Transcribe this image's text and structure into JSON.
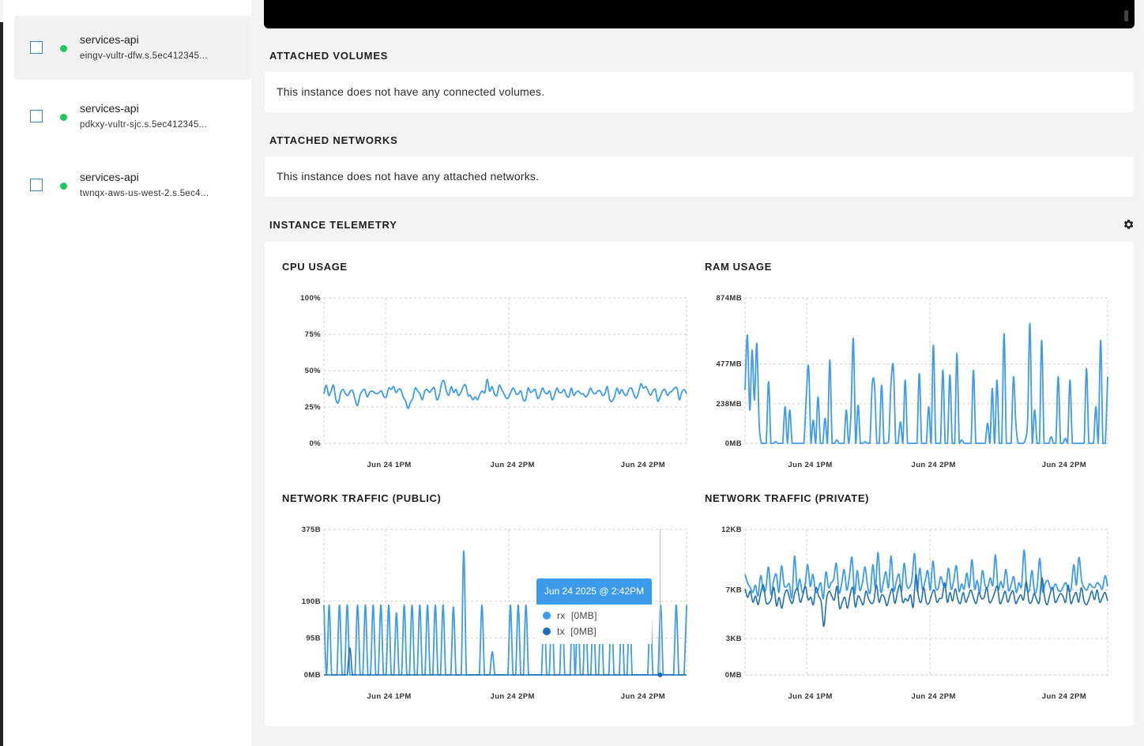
{
  "sidebar": {
    "instances": [
      {
        "name": "services-api",
        "host": "eingv-vultr-dfw.s.5ec412345...",
        "status": "running"
      },
      {
        "name": "services-api",
        "host": "pdkxy-vultr-sjc.s.5ec412345...",
        "status": "running"
      },
      {
        "name": "services-api",
        "host": "twnqx-aws-us-west-2.s.5ec4...",
        "status": "running"
      }
    ]
  },
  "volumes": {
    "title": "ATTACHED VOLUMES",
    "message": "This instance does not have any connected volumes."
  },
  "networks": {
    "title": "ATTACHED NETWORKS",
    "message": "This instance does not have any attached networks."
  },
  "telemetry": {
    "title": "INSTANCE TELEMETRY",
    "settings_icon": "gear-icon"
  },
  "colors": {
    "accent": "#3d9be9",
    "series_rx": "#3d9be9",
    "series_tx": "#1f6fb2",
    "status_ok": "#22c55e"
  },
  "chart_data": [
    {
      "id": "cpu",
      "type": "line",
      "title": "CPU USAGE",
      "y_ticks": [
        "100%",
        "75%",
        "50%",
        "25%",
        "0%"
      ],
      "x_ticks": [
        "Jun 24 1PM",
        "Jun 24 2PM",
        "Jun 24 2PM"
      ],
      "ylim": [
        0,
        100
      ],
      "grid": true,
      "series": [
        {
          "values": [
            34,
            40,
            33,
            36,
            40,
            30,
            28,
            35,
            37,
            34,
            33,
            36,
            36,
            30,
            26,
            33,
            36,
            37,
            32,
            35,
            36,
            35,
            34,
            35,
            36,
            32,
            32,
            38,
            37,
            39,
            35,
            37,
            37,
            32,
            29,
            24,
            28,
            31,
            38,
            36,
            34,
            30,
            36,
            37,
            35,
            37,
            38,
            30,
            33,
            41,
            43,
            36,
            33,
            39,
            35,
            37,
            33,
            35,
            39,
            40,
            33,
            33,
            30,
            32,
            30,
            34,
            36,
            35,
            44,
            36,
            39,
            34,
            33,
            40,
            37,
            34,
            31,
            32,
            36,
            38,
            34,
            34,
            36,
            30,
            30,
            38,
            35,
            36,
            37,
            31,
            33,
            38,
            35,
            34,
            36,
            30,
            33,
            38,
            35,
            35,
            37,
            33,
            32,
            38,
            33,
            35,
            36,
            34,
            34,
            32,
            34,
            38,
            35,
            34,
            36,
            36,
            33,
            34,
            39,
            30,
            29,
            32,
            38,
            34,
            37,
            34,
            33,
            37,
            38,
            34,
            31,
            35,
            41,
            38,
            39,
            36,
            33,
            36,
            37,
            29,
            32,
            36,
            37,
            33,
            35,
            36,
            38,
            38,
            30,
            35,
            37,
            34
          ]
        }
      ]
    },
    {
      "id": "ram",
      "type": "line",
      "title": "RAM USAGE",
      "y_ticks": [
        "874MB",
        "477MB",
        "238MB",
        "0MB"
      ],
      "x_ticks": [
        "Jun 24 1PM",
        "Jun 24 2PM",
        "Jun 24 2PM"
      ],
      "ylim": [
        0,
        874
      ],
      "grid": true,
      "series": [
        {
          "values": [
            320,
            650,
            200,
            560,
            260,
            600,
            120,
            0,
            0,
            0,
            370,
            0,
            0,
            10,
            0,
            0,
            0,
            220,
            0,
            200,
            0,
            0,
            0,
            0,
            0,
            0,
            280,
            460,
            0,
            140,
            0,
            280,
            0,
            0,
            150,
            0,
            500,
            0,
            0,
            20,
            0,
            0,
            0,
            200,
            0,
            180,
            630,
            0,
            230,
            0,
            0,
            10,
            0,
            0,
            350,
            350,
            0,
            0,
            350,
            0,
            0,
            10,
            360,
            460,
            0,
            0,
            130,
            0,
            380,
            0,
            0,
            0,
            0,
            0,
            420,
            0,
            0,
            0,
            220,
            0,
            590,
            0,
            0,
            0,
            440,
            0,
            0,
            410,
            0,
            0,
            540,
            0,
            20,
            0,
            0,
            0,
            0,
            440,
            0,
            0,
            0,
            0,
            0,
            120,
            0,
            330,
            0,
            380,
            0,
            0,
            660,
            0,
            0,
            0,
            400,
            120,
            0,
            0,
            0,
            20,
            140,
            720,
            0,
            200,
            0,
            0,
            620,
            0,
            0,
            0,
            40,
            0,
            0,
            400,
            0,
            0,
            30,
            0,
            380,
            0,
            0,
            0,
            0,
            0,
            0,
            450,
            0,
            0,
            0,
            220,
            0,
            620,
            0,
            0,
            400
          ]
        }
      ]
    },
    {
      "id": "net-public",
      "type": "line",
      "title": "NETWORK TRAFFIC (PUBLIC)",
      "y_ticks": [
        "375B",
        "190B",
        "95B",
        "0MB"
      ],
      "x_ticks": [
        "Jun 24 1PM",
        "Jun 24 2PM",
        "Jun 24 2PM"
      ],
      "ylim": [
        0,
        375
      ],
      "grid": true,
      "series": [
        {
          "name": "rx",
          "values": [
            180,
            0,
            180,
            0,
            0,
            0,
            180,
            0,
            0,
            180,
            0,
            0,
            0,
            180,
            0,
            0,
            180,
            0,
            0,
            180,
            0,
            0,
            180,
            0,
            0,
            180,
            0,
            0,
            160,
            0,
            0,
            180,
            0,
            0,
            180,
            0,
            0,
            180,
            0,
            0,
            180,
            0,
            0,
            180,
            0,
            0,
            180,
            0,
            0,
            0,
            175,
            0,
            0,
            0,
            320,
            0,
            0,
            0,
            0,
            0,
            0,
            180,
            0,
            0,
            0,
            60,
            0,
            0,
            0,
            0,
            0,
            0,
            180,
            0,
            0,
            180,
            0,
            0,
            180,
            0,
            0,
            0,
            0,
            0,
            0,
            180,
            0,
            0,
            170,
            0,
            0,
            0,
            180,
            0,
            0,
            0,
            180,
            0,
            180,
            0,
            0,
            180,
            0,
            0,
            180,
            0,
            0,
            180,
            0,
            0,
            0,
            180,
            0,
            0,
            0,
            180,
            0,
            0,
            180,
            0,
            0,
            0,
            0,
            0,
            0,
            0,
            180,
            0,
            0,
            0,
            180,
            0,
            0,
            0,
            0,
            0,
            180,
            0,
            0,
            0,
            180
          ]
        },
        {
          "name": "tx",
          "values": [
            0,
            0,
            0,
            0,
            0,
            0,
            0,
            0,
            0,
            0,
            70,
            0,
            0,
            0,
            0,
            0,
            0,
            0,
            0,
            0,
            0,
            0,
            0,
            0,
            0,
            0,
            0,
            0,
            0,
            0,
            0,
            0,
            0,
            0,
            0,
            0,
            0,
            0,
            0,
            0,
            0,
            0,
            0,
            0,
            0,
            0,
            0,
            0,
            0,
            0,
            0,
            0,
            0,
            0,
            0,
            0,
            0,
            0,
            0,
            0,
            0,
            0,
            0,
            0,
            0,
            0,
            0,
            0,
            0,
            0,
            0,
            0,
            0,
            0,
            0,
            0,
            0,
            0,
            0,
            0,
            0,
            0,
            0,
            0,
            0,
            0,
            0,
            0,
            0,
            0,
            0,
            0,
            0,
            0,
            0,
            0,
            0,
            0,
            0,
            0,
            0,
            0,
            0,
            0,
            0,
            0,
            0,
            0,
            0,
            0,
            0,
            0,
            0,
            0,
            0,
            0,
            0,
            0,
            0,
            0,
            0,
            0,
            0,
            0,
            0,
            0,
            0,
            0,
            0,
            0,
            0,
            0,
            0,
            0,
            0,
            0,
            0,
            0,
            0,
            0,
            0
          ]
        }
      ],
      "tooltip": {
        "header": "Jun 24 2025 @ 2:42PM",
        "rows": [
          {
            "label": "rx",
            "value": "[0MB]"
          },
          {
            "label": "tx",
            "value": "[0MB]"
          }
        ]
      }
    },
    {
      "id": "net-private",
      "type": "line",
      "title": "NETWORK TRAFFIC (PRIVATE)",
      "y_ticks": [
        "12KB",
        "7KB",
        "3KB",
        "0MB"
      ],
      "x_ticks": [
        "Jun 24 1PM",
        "Jun 24 2PM",
        "Jun 24 2PM"
      ],
      "ylim": [
        0,
        12
      ],
      "grid": true,
      "series": [
        {
          "name": "rx",
          "values": [
            8.3,
            7.6,
            7.2,
            6.8,
            7.4,
            6.5,
            8.2,
            7.0,
            7.1,
            8.9,
            6.6,
            7.8,
            8.3,
            6.8,
            9.0,
            7.4,
            7.3,
            7.5,
            6.4,
            9.8,
            7.1,
            7.9,
            6.8,
            7.4,
            9.1,
            7.3,
            8.3,
            6.9,
            7.0,
            7.6,
            6.3,
            8.5,
            7.2,
            7.6,
            7.9,
            9.2,
            6.8,
            7.5,
            8.7,
            7.0,
            8.1,
            9.7,
            6.7,
            8.6,
            7.0,
            7.6,
            8.9,
            7.3,
            6.8,
            9.1,
            7.2,
            10.1,
            6.9,
            7.6,
            8.5,
            7.2,
            9.8,
            7.0,
            7.7,
            8.3,
            6.9,
            9.2,
            7.4,
            7.2,
            7.9,
            10.0,
            6.9,
            8.8,
            7.1,
            7.7,
            8.6,
            7.0,
            9.4,
            7.3,
            7.1,
            8.1,
            7.4,
            7.3,
            8.8,
            7.1,
            7.8,
            9.0,
            6.9,
            7.5,
            7.1,
            8.4,
            7.2,
            9.5,
            7.1,
            7.8,
            6.8,
            8.6,
            7.4,
            7.2,
            8.0,
            7.4,
            9.9,
            7.1,
            7.7,
            7.2,
            8.7,
            7.0,
            7.4,
            8.1,
            6.8,
            7.6,
            7.3,
            10.3,
            7.2,
            7.0,
            8.6,
            6.8,
            7.3,
            9.6,
            6.9,
            7.5,
            7.8,
            7.2,
            7.1,
            7.5,
            7.0,
            6.9,
            7.3,
            7.6,
            7.0,
            7.1,
            9.1,
            7.4,
            9.7,
            7.8,
            7.2,
            7.0,
            7.5,
            7.3,
            7.2,
            7.6,
            7.4,
            7.1,
            8.2,
            7.3
          ]
        },
        {
          "name": "tx",
          "values": [
            7.1,
            6.4,
            6.9,
            6.0,
            6.5,
            5.8,
            6.8,
            7.4,
            6.0,
            5.9,
            6.3,
            7.2,
            5.7,
            6.4,
            5.5,
            6.6,
            7.0,
            6.3,
            5.9,
            6.8,
            7.1,
            6.0,
            6.6,
            7.3,
            6.2,
            6.4,
            5.8,
            7.2,
            6.5,
            6.0,
            4.0,
            6.2,
            6.9,
            6.5,
            6.2,
            7.3,
            5.5,
            6.0,
            6.4,
            5.5,
            6.6,
            7.2,
            5.6,
            6.5,
            6.2,
            5.8,
            6.9,
            6.3,
            5.9,
            6.1,
            7.4,
            6.0,
            6.6,
            6.4,
            5.7,
            6.5,
            7.1,
            5.9,
            6.8,
            7.4,
            6.0,
            6.3,
            6.1,
            6.6,
            5.6,
            8.3,
            6.5,
            6.0,
            7.2,
            6.0,
            5.9,
            6.6,
            7.0,
            6.0,
            6.3,
            6.4,
            7.6,
            6.0,
            6.8,
            6.1,
            7.1,
            6.2,
            5.9,
            6.8,
            6.0,
            6.5,
            7.0,
            6.3,
            5.9,
            6.8,
            6.3,
            6.4,
            7.2,
            6.0,
            6.2,
            6.8,
            7.3,
            5.9,
            6.3,
            6.9,
            6.0,
            6.6,
            6.9,
            5.9,
            6.3,
            6.6,
            6.2,
            7.7,
            6.1,
            6.0,
            6.7,
            6.2,
            6.0,
            8.0,
            6.4,
            5.8,
            6.6,
            7.2,
            6.0,
            6.3,
            6.7,
            6.5,
            6.0,
            7.4,
            5.9,
            6.4,
            6.8,
            6.0,
            7.2,
            6.1,
            5.8,
            6.3,
            6.9,
            6.2,
            7.0,
            6.0,
            6.4,
            6.8,
            6.1
          ]
        }
      ]
    }
  ]
}
